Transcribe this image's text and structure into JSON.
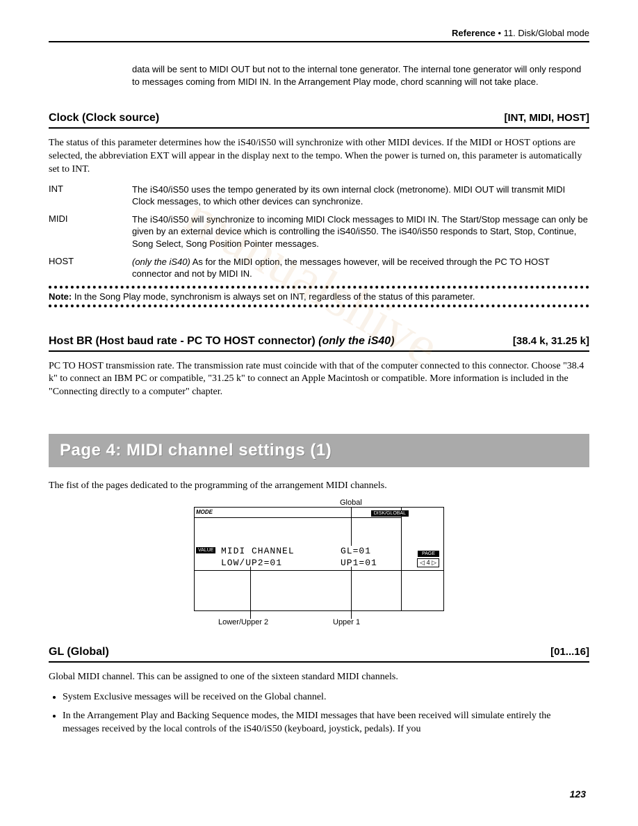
{
  "header": {
    "bold": "Reference",
    "rest": " • 11. Disk/Global mode"
  },
  "intro": "data will be sent to MIDI OUT but not to the internal tone generator. The internal tone generator will only respond to messages coming from MIDI IN. In the Arrangement Play mode, chord scanning will not take place.",
  "clock": {
    "title": "Clock (Clock source)",
    "range": "[INT, MIDI, HOST]",
    "para": "The status of this parameter determines how the iS40/iS50 will synchronize with other MIDI devices. If the MIDI or HOST options are selected, the abbreviation EXT will appear in the display next to the tempo. When the power is turned on, this parameter is automatically set to INT.",
    "defs": [
      {
        "term": "INT",
        "desc": "The iS40/iS50 uses the tempo generated by its own internal clock (metronome). MIDI OUT will transmit MIDI Clock messages, to which other devices can synchronize."
      },
      {
        "term": "MIDI",
        "desc": "The iS40/iS50 will synchronize to incoming MIDI Clock messages to MIDI IN. The Start/Stop message can only be given by an external device which is controlling the iS40/iS50. The iS40/iS50 responds to Start, Stop, Continue, Song Select, Song Position Pointer messages."
      },
      {
        "term": "HOST",
        "desc_prefix": "(only the iS40)",
        "desc": " As for the MIDI option, the messages however, will be received through the PC TO HOST connector and not by MIDI IN."
      }
    ],
    "note_label": "Note:",
    "note": " In the Song Play mode, synchronism is always set on INT, regardless of the status of this parameter."
  },
  "hostbr": {
    "title_main": "Host BR (Host baud rate - PC TO HOST connector) ",
    "title_italic": "(only the iS40)",
    "range": "[38.4 k, 31.25 k]",
    "para": "PC TO HOST transmission rate. The transmission rate must coincide with that of the computer connected to this connector. Choose \"38.4 k\" to connect an IBM PC or compatible, \"31.25 k\" to connect an Apple Macintosh or compatible. More information is included in the \"Connecting directly to a computer\" chapter."
  },
  "banner": "Page 4: MIDI channel settings (1)",
  "banner_intro": "The fist of the pages dedicated to the programming of the arrangement MIDI channels.",
  "diagram": {
    "label_global": "Global",
    "mode": "MODE",
    "diskglobal": "DISK/GLOBAL",
    "value": "VALUE",
    "line1": "MIDI CHANNEL",
    "line2": "LOW/UP2=01",
    "line3": "GL=01",
    "line4": "UP1=01",
    "page": "PAGE",
    "pagenum": "◁ 4 ▷",
    "label_lower": "Lower/Upper 2",
    "label_upper": "Upper 1"
  },
  "gl": {
    "title": "GL (Global)",
    "range": "[01...16]",
    "para": "Global MIDI channel. This can be assigned to one of the sixteen standard MIDI channels.",
    "bullets": [
      "System Exclusive messages will be received on the Global channel.",
      "In the Arrangement Play and Backing Sequence modes, the MIDI messages that have been received will simulate entirely the messages received by the local controls of the iS40/iS50 (keyboard, joystick, pedals). If you"
    ]
  },
  "page_number": "123",
  "colors": {
    "banner_bg": "#aaaaaa",
    "banner_fg": "#ffffff",
    "text": "#000000",
    "watermark": "#d49a5a"
  }
}
